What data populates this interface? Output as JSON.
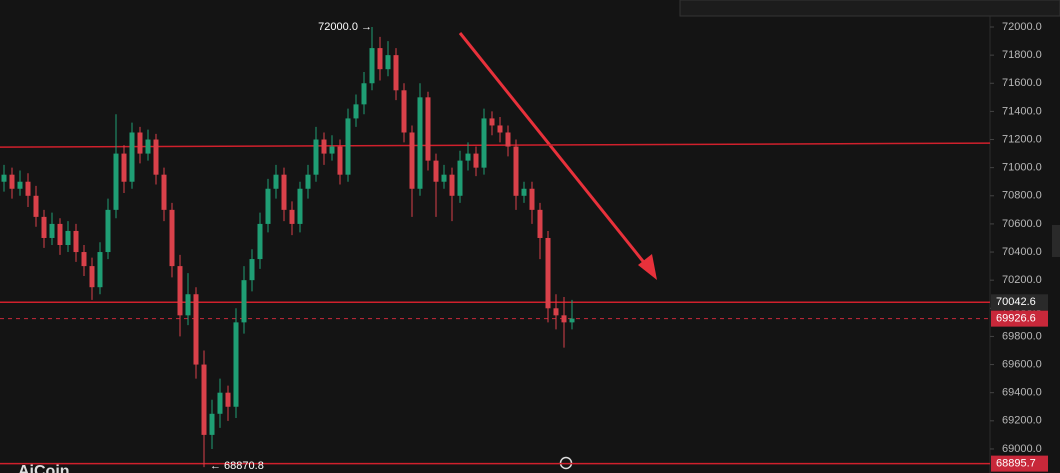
{
  "chart_data": {
    "type": "candlestick",
    "ylim": [
      68829,
      72192
    ],
    "yticks": [
      {
        "value": 69000,
        "label": "69000.0"
      },
      {
        "value": 69200,
        "label": "69200.0"
      },
      {
        "value": 69400,
        "label": "69400.0"
      },
      {
        "value": 69600,
        "label": "69600.0"
      },
      {
        "value": 69800,
        "label": "69800.0"
      },
      {
        "value": 70000,
        "label": "70000.0"
      },
      {
        "value": 70200,
        "label": "70200.0"
      },
      {
        "value": 70400,
        "label": "70400.0"
      },
      {
        "value": 70600,
        "label": "70600.0"
      },
      {
        "value": 70800,
        "label": "70800.0"
      },
      {
        "value": 71000,
        "label": "71000.0"
      },
      {
        "value": 71200,
        "label": "71200.0"
      },
      {
        "value": 71400,
        "label": "71400.0"
      },
      {
        "value": 71600,
        "label": "71600.0"
      },
      {
        "value": 71800,
        "label": "71800.0"
      },
      {
        "value": 72000,
        "label": "72000.0"
      }
    ],
    "up_color": "#1f9e74",
    "down_color": "#d9414a",
    "open": [
      70900,
      70950,
      70850,
      70900,
      70800,
      70650,
      70500,
      70600,
      70450,
      70550,
      70400,
      70300,
      70150,
      70400,
      70700,
      71100,
      70900,
      71250,
      71100,
      71200,
      70950,
      70700,
      70300,
      69950,
      70100,
      69600,
      69100,
      69250,
      69400,
      69300,
      69900,
      70200,
      70350,
      70600,
      70850,
      70950,
      70700,
      70600,
      70850,
      70950,
      71200,
      71100,
      71150,
      70950,
      71350,
      71450,
      71600,
      71850,
      71700,
      71800,
      71550,
      71250,
      70850,
      71500,
      71050,
      70900,
      70950,
      70800,
      71050,
      71100,
      71000,
      71350,
      71300,
      71250,
      71150,
      70800,
      70850,
      70700,
      70500,
      70000,
      69950,
      69900
    ],
    "high": [
      71020,
      71000,
      70980,
      70960,
      70870,
      70700,
      70680,
      70640,
      70620,
      70600,
      70450,
      70360,
      70470,
      70780,
      71380,
      71160,
      71320,
      71290,
      71270,
      71240,
      71000,
      70750,
      70380,
      70250,
      70150,
      69700,
      69350,
      69500,
      69450,
      70000,
      70300,
      70420,
      70680,
      70920,
      71020,
      71000,
      70760,
      70900,
      71020,
      71290,
      71250,
      71230,
      71200,
      71420,
      71520,
      71680,
      72000,
      71930,
      71900,
      71850,
      71600,
      71300,
      71600,
      71540,
      71100,
      71020,
      71000,
      71120,
      71180,
      71150,
      71420,
      71400,
      71360,
      71300,
      71200,
      70900,
      70900,
      70750,
      70550,
      70100,
      70080,
      70060
    ],
    "low": [
      70830,
      70780,
      70800,
      70720,
      70580,
      70430,
      70450,
      70380,
      70400,
      70330,
      70230,
      70060,
      70100,
      70350,
      70640,
      70820,
      70850,
      71030,
      71050,
      70880,
      70620,
      70220,
      69800,
      69880,
      69500,
      68870.8,
      69000,
      69150,
      69200,
      69220,
      69820,
      70120,
      70280,
      70540,
      70780,
      70620,
      70520,
      70540,
      70780,
      70900,
      71020,
      71050,
      70880,
      70900,
      71290,
      71380,
      71550,
      71620,
      71650,
      71480,
      71180,
      70650,
      70800,
      70980,
      70650,
      70850,
      70620,
      70750,
      70980,
      70940,
      70950,
      71230,
      71180,
      71080,
      70700,
      70750,
      70600,
      70350,
      69900,
      69850,
      69720,
      69850
    ],
    "close": [
      70950,
      70850,
      70900,
      70800,
      70650,
      70500,
      70600,
      70450,
      70550,
      70400,
      70300,
      70150,
      70400,
      70700,
      71100,
      70900,
      71250,
      71100,
      71200,
      70950,
      70700,
      70300,
      69950,
      70100,
      69600,
      69100,
      69250,
      69400,
      69300,
      69900,
      70200,
      70350,
      70600,
      70850,
      70950,
      70700,
      70600,
      70850,
      70950,
      71200,
      71100,
      71150,
      70950,
      71350,
      71450,
      71600,
      71850,
      71700,
      71800,
      71550,
      71250,
      70850,
      71500,
      71050,
      70900,
      70950,
      70800,
      71050,
      71100,
      71000,
      71350,
      71300,
      71250,
      71150,
      70800,
      70850,
      70700,
      70500,
      70000,
      69950,
      69900,
      69926.6
    ],
    "trend_lines": [
      71160
    ],
    "price_lines": [
      70042.6,
      68895.7
    ],
    "last_price": 69926.6,
    "annotations": [
      "72000.0 →",
      "← 68870.8"
    ],
    "watermark": "AiCoin"
  }
}
